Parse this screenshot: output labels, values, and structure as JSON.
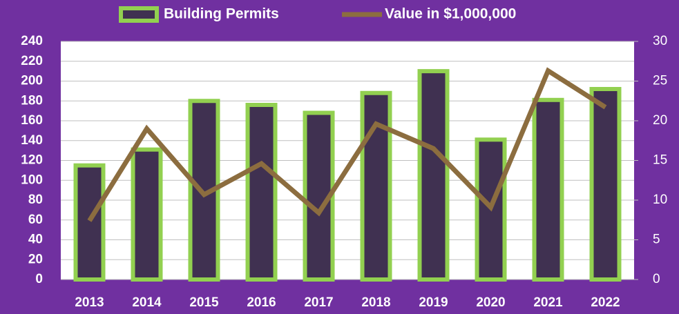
{
  "chart_data": {
    "type": "bar",
    "categories": [
      "2013",
      "2014",
      "2015",
      "2016",
      "2017",
      "2018",
      "2019",
      "2020",
      "2021",
      "2022"
    ],
    "series": [
      {
        "name": "Building Permits",
        "type": "bar",
        "color": "#403151",
        "edge_color": "#92d050",
        "values": [
          115,
          131,
          180,
          176,
          168,
          188,
          210,
          141,
          181,
          192
        ]
      },
      {
        "name": "Value in $1,000,000",
        "type": "line",
        "axis": "y2",
        "color": "#8c6d3f",
        "values": [
          7.4,
          19.0,
          10.7,
          14.6,
          8.4,
          19.6,
          16.5,
          9.1,
          26.3,
          21.7
        ]
      }
    ],
    "ylim": [
      0,
      240
    ],
    "yticks": [
      0,
      20,
      40,
      60,
      80,
      100,
      120,
      140,
      160,
      180,
      200,
      220,
      240
    ],
    "y2lim": [
      0,
      30
    ],
    "y2ticks": [
      0,
      5,
      10,
      15,
      20,
      25,
      30
    ],
    "grid": true,
    "legend": "top"
  }
}
